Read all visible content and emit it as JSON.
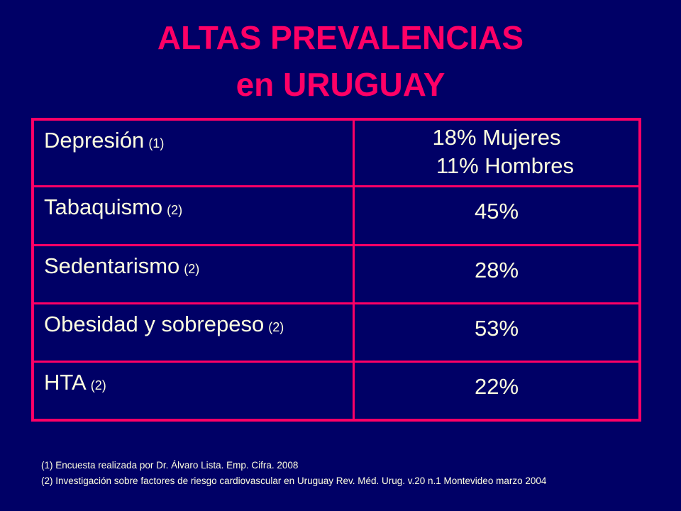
{
  "title": {
    "line1": "ALTAS  PREVALENCIAS",
    "line2": "en  URUGUAY"
  },
  "table": {
    "rows": [
      {
        "label": "Depresión",
        "ref": "(1)",
        "values": [
          "18% Mujeres",
          "11% Hombres"
        ]
      },
      {
        "label": "Tabaquismo",
        "ref": "(2)",
        "values": [
          "45%"
        ]
      },
      {
        "label": "Sedentarismo",
        "ref": "(2)",
        "values": [
          "28%"
        ]
      },
      {
        "label": "Obesidad y sobrepeso",
        "ref": "(2)",
        "values": [
          "53%"
        ]
      },
      {
        "label": "HTA",
        "ref": "(2)",
        "values": [
          "22%"
        ]
      }
    ]
  },
  "footnotes": [
    "(1) Encuesta realizada por Dr. Álvaro Lista. Emp. Cifra. 2008",
    "(2) Investigación sobre factores de riesgo cardiovascular en Uruguay Rev. Méd. Urug. v.20 n.1 Montevideo marzo 2004"
  ],
  "colors": {
    "background": "#000066",
    "accent": "#FF0066",
    "text": "#FFFFE0"
  }
}
